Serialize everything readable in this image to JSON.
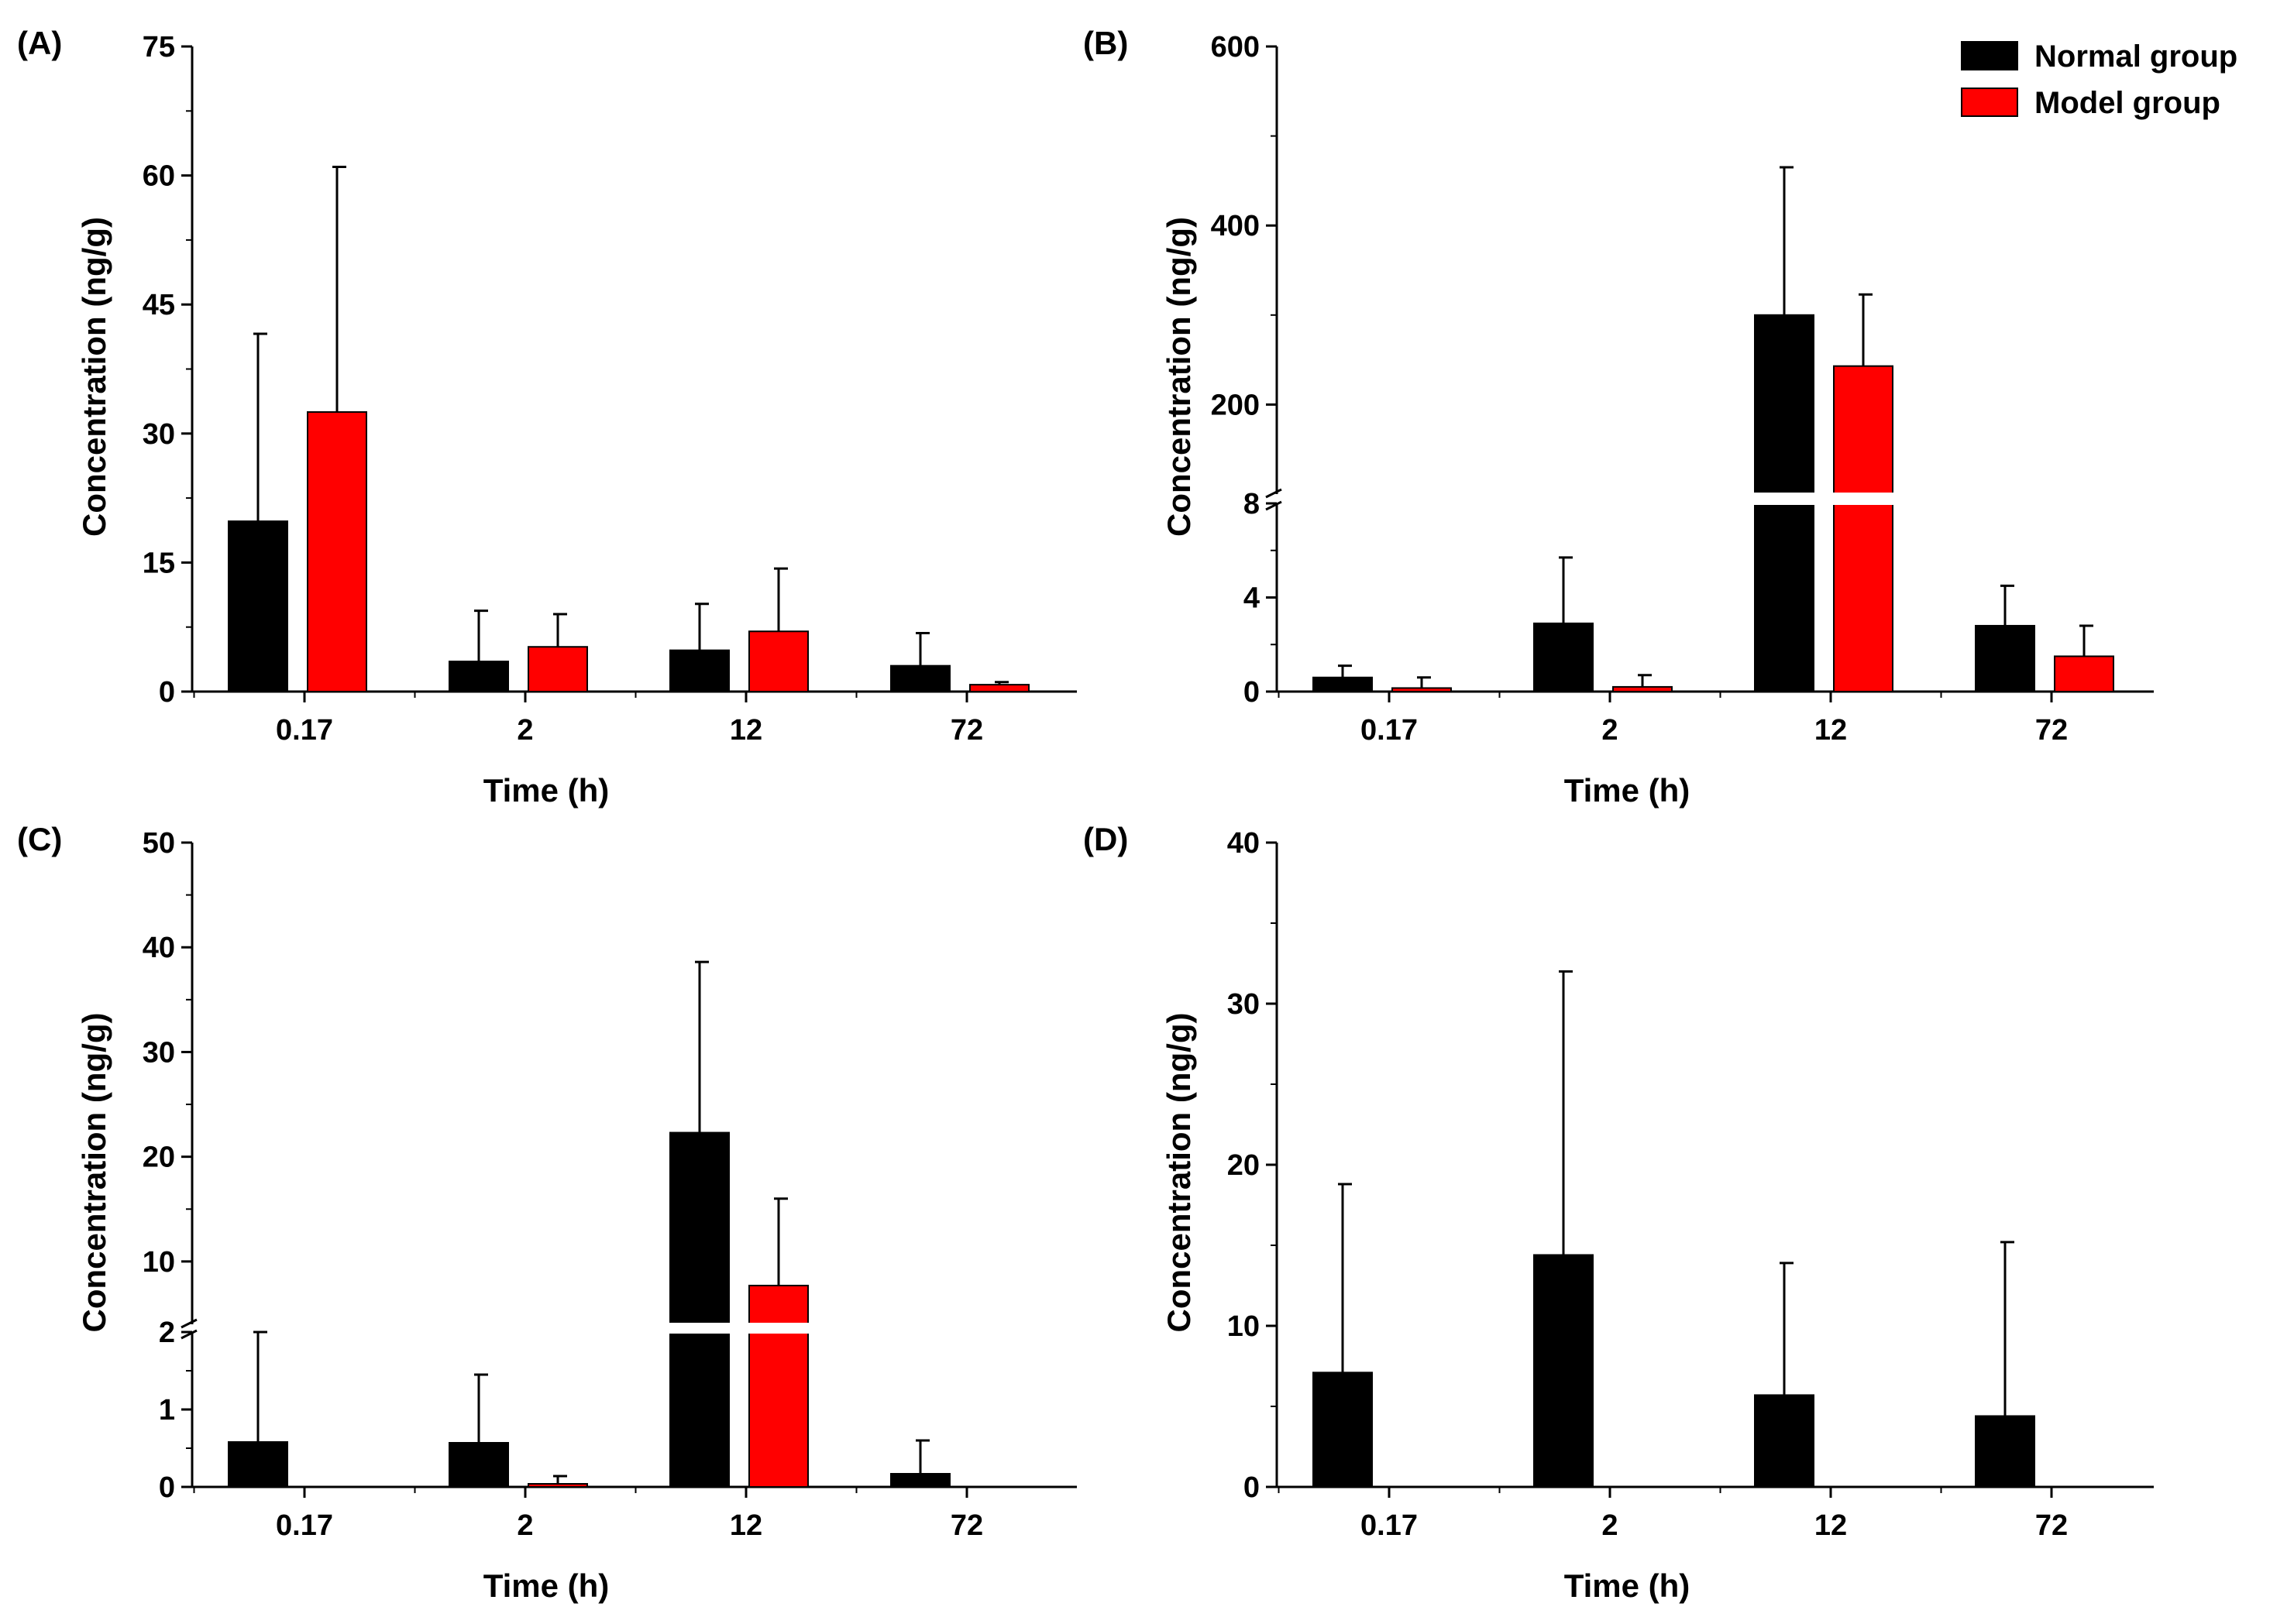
{
  "legend": {
    "items": [
      {
        "label": "Normal group",
        "color": "#000000"
      },
      {
        "label": "Model group",
        "color": "#ff0000"
      }
    ],
    "placement": "top-right"
  },
  "colors": {
    "normal": "#000000",
    "model": "#ff0000",
    "axis": "#000000",
    "break_gap": "#ffffff"
  },
  "chart_data": [
    {
      "id": "A",
      "panel_label": "(A)",
      "type": "bar",
      "xlabel": "Time (h)",
      "ylabel": "Concentration (ng/g)",
      "categories": [
        "0.17",
        "2",
        "12",
        "72"
      ],
      "ylim": [
        0,
        75
      ],
      "yticks": [
        "0",
        "15",
        "30",
        "45",
        "60",
        "75"
      ],
      "yticks_values": [
        0,
        15,
        30,
        45,
        60,
        75
      ],
      "series": [
        {
          "name": "Normal group",
          "values": [
            19.8,
            3.5,
            4.8,
            3.0
          ],
          "errors": [
            21.8,
            5.9,
            5.4,
            3.8
          ]
        },
        {
          "name": "Model group",
          "values": [
            32.5,
            5.2,
            7.0,
            0.8
          ],
          "errors": [
            28.5,
            3.8,
            7.3,
            0.3
          ]
        }
      ]
    },
    {
      "id": "B",
      "panel_label": "(B)",
      "type": "bar",
      "xlabel": "Time (h)",
      "ylabel": "Concentration (ng/g)",
      "categories": [
        "0.17",
        "2",
        "12",
        "72"
      ],
      "broken_axis": {
        "lower_range": [
          0,
          8
        ],
        "upper_range": [
          100,
          600
        ]
      },
      "yticks_lower": [
        "0",
        "4",
        "8"
      ],
      "yticks_lower_values": [
        0,
        4,
        8
      ],
      "yticks_upper": [
        "200",
        "400",
        "600"
      ],
      "yticks_upper_values": [
        200,
        400,
        600
      ],
      "series": [
        {
          "name": "Normal group",
          "values": [
            0.6,
            2.9,
            300,
            2.8
          ],
          "errors": [
            0.5,
            2.8,
            165,
            1.7
          ]
        },
        {
          "name": "Model group",
          "values": [
            0.15,
            0.2,
            243,
            1.5
          ],
          "errors": [
            0.45,
            0.5,
            80,
            1.3
          ]
        }
      ]
    },
    {
      "id": "C",
      "panel_label": "(C)",
      "type": "bar",
      "xlabel": "Time (h)",
      "ylabel": "Concentration (ng/g)",
      "categories": [
        "0.17",
        "2",
        "12",
        "72"
      ],
      "broken_axis": {
        "lower_range": [
          0,
          2
        ],
        "upper_range": [
          4,
          50
        ]
      },
      "yticks_lower": [
        "0",
        "1",
        "2"
      ],
      "yticks_lower_values": [
        0,
        1,
        2
      ],
      "yticks_upper": [
        "10",
        "20",
        "30",
        "40",
        "50"
      ],
      "yticks_upper_values": [
        10,
        20,
        30,
        40,
        50
      ],
      "series": [
        {
          "name": "Normal group",
          "values": [
            0.58,
            0.57,
            22.3,
            0.17
          ],
          "errors": [
            1.42,
            0.88,
            16.3,
            0.43
          ]
        },
        {
          "name": "Model group",
          "values": [
            0,
            0.04,
            7.7,
            0
          ],
          "errors": [
            0,
            0.1,
            8.3,
            0
          ]
        }
      ]
    },
    {
      "id": "D",
      "panel_label": "(D)",
      "type": "bar",
      "xlabel": "Time (h)",
      "ylabel": "Concentration (ng/g)",
      "categories": [
        "0.17",
        "2",
        "12",
        "72"
      ],
      "ylim": [
        0,
        40
      ],
      "yticks": [
        "0",
        "10",
        "20",
        "30",
        "40"
      ],
      "yticks_values": [
        0,
        10,
        20,
        30,
        40
      ],
      "series": [
        {
          "name": "Normal group",
          "values": [
            7.1,
            14.4,
            5.7,
            4.4
          ],
          "errors": [
            11.7,
            17.6,
            8.2,
            10.8
          ]
        },
        {
          "name": "Model group",
          "values": [
            0,
            0,
            0,
            0
          ],
          "errors": [
            0,
            0,
            0,
            0
          ]
        }
      ]
    }
  ]
}
